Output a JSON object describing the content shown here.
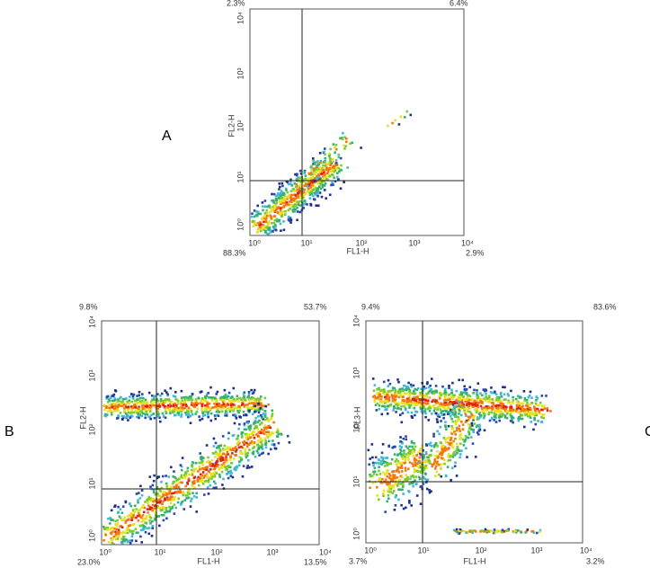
{
  "panels": [
    {
      "letter": "A",
      "x_label": "FL1-H",
      "y_label": "FL2-H",
      "quadrants": {
        "upper_left": "2.3%",
        "upper_right": "6.4%",
        "lower_left": "88.3%",
        "lower_right": "2.9%"
      },
      "x_ticks": [
        "10⁰",
        "10¹",
        "10²",
        "10³",
        "10⁴"
      ],
      "y_ticks": [
        "10⁰",
        "10¹",
        "10²",
        "10³",
        "10⁴"
      ]
    },
    {
      "letter": "B",
      "x_label": "FL1-H",
      "y_label": "FL2-H",
      "quadrants": {
        "upper_left": "9.8%",
        "upper_right": "53.7%",
        "lower_left": "23.0%",
        "lower_right": "13.5%"
      },
      "x_ticks": [
        "10⁰",
        "10¹",
        "10²",
        "10³",
        "10⁴"
      ],
      "y_ticks": [
        "10⁰",
        "10¹",
        "10²",
        "10³",
        "10⁴"
      ]
    },
    {
      "letter": "C",
      "x_label": "FL1-H",
      "y_label": "FL3-H",
      "quadrants": {
        "upper_left": "9.4%",
        "upper_right": "83.6%",
        "lower_left": "3.7%",
        "lower_right": "3.2%"
      },
      "x_ticks": [
        "10⁰",
        "10¹",
        "10²",
        "10³",
        "10⁴"
      ],
      "y_ticks": [
        "10⁰",
        "10¹",
        "10²",
        "10³",
        "10⁴"
      ]
    }
  ]
}
